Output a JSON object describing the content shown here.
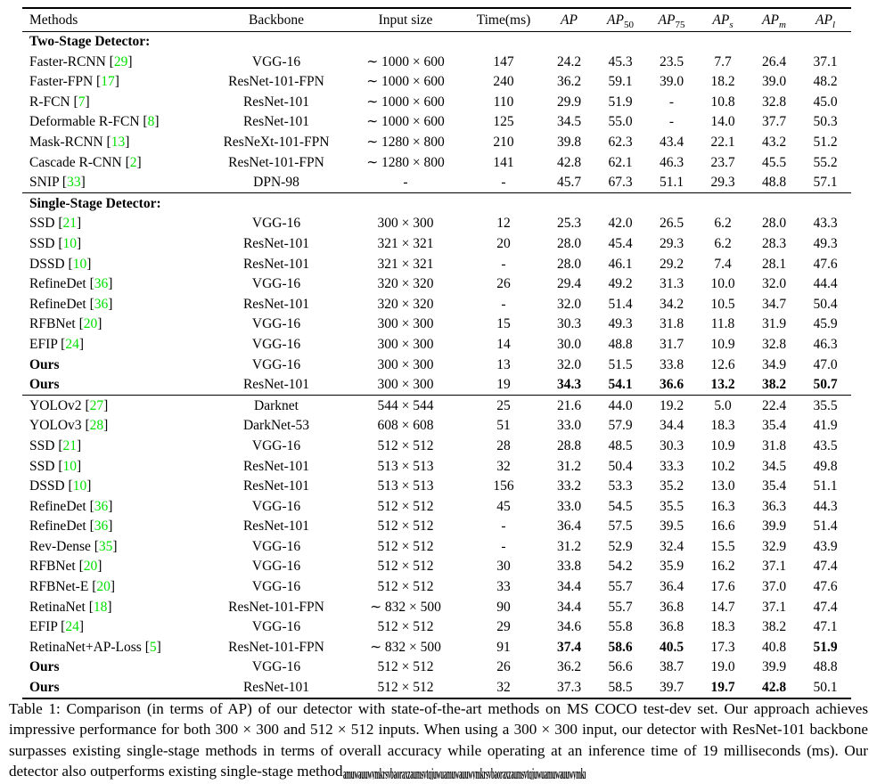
{
  "colors": {
    "citation_green": "#00e000",
    "text": "#000000",
    "background": "#ffffff"
  },
  "table": {
    "columns": [
      {
        "label": "Methods",
        "align": "left"
      },
      {
        "label": "Backbone"
      },
      {
        "label": "Input size"
      },
      {
        "label": "Time(ms)"
      },
      {
        "label": "AP",
        "sub": ""
      },
      {
        "label": "AP",
        "sub": "50"
      },
      {
        "label": "AP",
        "sub": "75"
      },
      {
        "label": "AP",
        "sub": "s"
      },
      {
        "label": "AP",
        "sub": "m"
      },
      {
        "label": "AP",
        "sub": "l"
      }
    ],
    "blocks": [
      {
        "section": "Two-Stage Detector:",
        "rows": [
          {
            "method": "Faster-RCNN",
            "cite": "29",
            "backbone": "VGG-16",
            "input": "∼ 1000 × 600",
            "time": "147",
            "values": [
              "24.2",
              "45.3",
              "23.5",
              "7.7",
              "26.4",
              "37.1"
            ],
            "bold": [],
            "bold_method": false
          },
          {
            "method": "Faster-FPN",
            "cite": "17",
            "backbone": "ResNet-101-FPN",
            "input": "∼ 1000 × 600",
            "time": "240",
            "values": [
              "36.2",
              "59.1",
              "39.0",
              "18.2",
              "39.0",
              "48.2"
            ],
            "bold": [],
            "bold_method": false
          },
          {
            "method": "R-FCN",
            "cite": "7",
            "backbone": "ResNet-101",
            "input": "∼ 1000 × 600",
            "time": "110",
            "values": [
              "29.9",
              "51.9",
              "-",
              "10.8",
              "32.8",
              "45.0"
            ],
            "bold": [],
            "bold_method": false
          },
          {
            "method": "Deformable R-FCN",
            "cite": "8",
            "backbone": "ResNet-101",
            "input": "∼ 1000 × 600",
            "time": "125",
            "values": [
              "34.5",
              "55.0",
              "-",
              "14.0",
              "37.7",
              "50.3"
            ],
            "bold": [],
            "bold_method": false
          },
          {
            "method": "Mask-RCNN",
            "cite": "13",
            "backbone": "ResNeXt-101-FPN",
            "input": "∼ 1280 × 800",
            "time": "210",
            "values": [
              "39.8",
              "62.3",
              "43.4",
              "22.1",
              "43.2",
              "51.2"
            ],
            "bold": [],
            "bold_method": false
          },
          {
            "method": "Cascade R-CNN",
            "cite": "2",
            "backbone": "ResNet-101-FPN",
            "input": "∼ 1280 × 800",
            "time": "141",
            "values": [
              "42.8",
              "62.1",
              "46.3",
              "23.7",
              "45.5",
              "55.2"
            ],
            "bold": [],
            "bold_method": false
          },
          {
            "method": "SNIP",
            "cite": "33",
            "backbone": "DPN-98",
            "input": "-",
            "time": "-",
            "values": [
              "45.7",
              "67.3",
              "51.1",
              "29.3",
              "48.8",
              "57.1"
            ],
            "bold": [],
            "bold_method": false
          }
        ]
      },
      {
        "section": "Single-Stage Detector:",
        "rows": [
          {
            "method": "SSD",
            "cite": "21",
            "backbone": "VGG-16",
            "input": "300 × 300",
            "time": "12",
            "values": [
              "25.3",
              "42.0",
              "26.5",
              "6.2",
              "28.0",
              "43.3"
            ],
            "bold": [],
            "bold_method": false
          },
          {
            "method": "SSD",
            "cite": "10",
            "backbone": "ResNet-101",
            "input": "321 × 321",
            "time": "20",
            "values": [
              "28.0",
              "45.4",
              "29.3",
              "6.2",
              "28.3",
              "49.3"
            ],
            "bold": [],
            "bold_method": false
          },
          {
            "method": "DSSD",
            "cite": "10",
            "backbone": "ResNet-101",
            "input": "321 × 321",
            "time": "-",
            "values": [
              "28.0",
              "46.1",
              "29.2",
              "7.4",
              "28.1",
              "47.6"
            ],
            "bold": [],
            "bold_method": false
          },
          {
            "method": "RefineDet",
            "cite": "36",
            "backbone": "VGG-16",
            "input": "320 × 320",
            "time": "26",
            "values": [
              "29.4",
              "49.2",
              "31.3",
              "10.0",
              "32.0",
              "44.4"
            ],
            "bold": [],
            "bold_method": false
          },
          {
            "method": "RefineDet",
            "cite": "36",
            "backbone": "ResNet-101",
            "input": "320 × 320",
            "time": "-",
            "values": [
              "32.0",
              "51.4",
              "34.2",
              "10.5",
              "34.7",
              "50.4"
            ],
            "bold": [],
            "bold_method": false
          },
          {
            "method": "RFBNet",
            "cite": "20",
            "backbone": "VGG-16",
            "input": "300 × 300",
            "time": "15",
            "values": [
              "30.3",
              "49.3",
              "31.8",
              "11.8",
              "31.9",
              "45.9"
            ],
            "bold": [],
            "bold_method": false
          },
          {
            "method": "EFIP",
            "cite": "24",
            "backbone": "VGG-16",
            "input": "300 × 300",
            "time": "14",
            "values": [
              "30.0",
              "48.8",
              "31.7",
              "10.9",
              "32.8",
              "46.3"
            ],
            "bold": [],
            "bold_method": false
          },
          {
            "method": "Ours",
            "cite": null,
            "backbone": "VGG-16",
            "input": "300 × 300",
            "time": "13",
            "values": [
              "32.0",
              "51.5",
              "33.8",
              "12.6",
              "34.9",
              "47.0"
            ],
            "bold": [],
            "bold_method": true
          },
          {
            "method": "Ours",
            "cite": null,
            "backbone": "ResNet-101",
            "input": "300 × 300",
            "time": "19",
            "values": [
              "34.3",
              "54.1",
              "36.6",
              "13.2",
              "38.2",
              "50.7"
            ],
            "bold": [
              0,
              1,
              2,
              3,
              4,
              5
            ],
            "bold_method": true
          }
        ]
      },
      {
        "section": null,
        "rows": [
          {
            "method": "YOLOv2",
            "cite": "27",
            "backbone": "Darknet",
            "input": "544 × 544",
            "time": "25",
            "values": [
              "21.6",
              "44.0",
              "19.2",
              "5.0",
              "22.4",
              "35.5"
            ],
            "bold": [],
            "bold_method": false
          },
          {
            "method": "YOLOv3",
            "cite": "28",
            "backbone": "DarkNet-53",
            "input": "608 × 608",
            "time": "51",
            "values": [
              "33.0",
              "57.9",
              "34.4",
              "18.3",
              "35.4",
              "41.9"
            ],
            "bold": [],
            "bold_method": false
          },
          {
            "method": "SSD",
            "cite": "21",
            "backbone": "VGG-16",
            "input": "512 × 512",
            "time": "28",
            "values": [
              "28.8",
              "48.5",
              "30.3",
              "10.9",
              "31.8",
              "43.5"
            ],
            "bold": [],
            "bold_method": false
          },
          {
            "method": "SSD",
            "cite": "10",
            "backbone": "ResNet-101",
            "input": "513 × 513",
            "time": "32",
            "values": [
              "31.2",
              "50.4",
              "33.3",
              "10.2",
              "34.5",
              "49.8"
            ],
            "bold": [],
            "bold_method": false
          },
          {
            "method": "DSSD",
            "cite": "10",
            "backbone": "ResNet-101",
            "input": "513 × 513",
            "time": "156",
            "values": [
              "33.2",
              "53.3",
              "35.2",
              "13.0",
              "35.4",
              "51.1"
            ],
            "bold": [],
            "bold_method": false
          },
          {
            "method": "RefineDet",
            "cite": "36",
            "backbone": "VGG-16",
            "input": "512 × 512",
            "time": "45",
            "values": [
              "33.0",
              "54.5",
              "35.5",
              "16.3",
              "36.3",
              "44.3"
            ],
            "bold": [],
            "bold_method": false
          },
          {
            "method": "RefineDet",
            "cite": "36",
            "backbone": "ResNet-101",
            "input": "512 × 512",
            "time": "-",
            "values": [
              "36.4",
              "57.5",
              "39.5",
              "16.6",
              "39.9",
              "51.4"
            ],
            "bold": [],
            "bold_method": false
          },
          {
            "method": "Rev-Dense",
            "cite": "35",
            "backbone": "VGG-16",
            "input": "512 × 512",
            "time": "-",
            "values": [
              "31.2",
              "52.9",
              "32.4",
              "15.5",
              "32.9",
              "43.9"
            ],
            "bold": [],
            "bold_method": false
          },
          {
            "method": "RFBNet",
            "cite": "20",
            "backbone": "VGG-16",
            "input": "512 × 512",
            "time": "30",
            "values": [
              "33.8",
              "54.2",
              "35.9",
              "16.2",
              "37.1",
              "47.4"
            ],
            "bold": [],
            "bold_method": false
          },
          {
            "method": "RFBNet-E",
            "cite": "20",
            "backbone": "VGG-16",
            "input": "512 × 512",
            "time": "33",
            "values": [
              "34.4",
              "55.7",
              "36.4",
              "17.6",
              "37.0",
              "47.6"
            ],
            "bold": [],
            "bold_method": false
          },
          {
            "method": "RetinaNet",
            "cite": "18",
            "backbone": "ResNet-101-FPN",
            "input": "∼ 832 × 500",
            "time": "90",
            "values": [
              "34.4",
              "55.7",
              "36.8",
              "14.7",
              "37.1",
              "47.4"
            ],
            "bold": [],
            "bold_method": false
          },
          {
            "method": "EFIP",
            "cite": "24",
            "backbone": "VGG-16",
            "input": "512 × 512",
            "time": "29",
            "values": [
              "34.6",
              "55.8",
              "36.8",
              "18.3",
              "38.2",
              "47.1"
            ],
            "bold": [],
            "bold_method": false
          },
          {
            "method": "RetinaNet+AP-Loss",
            "cite": "5",
            "backbone": "ResNet-101-FPN",
            "input": "∼ 832 × 500",
            "time": "91",
            "values": [
              "37.4",
              "58.6",
              "40.5",
              "17.3",
              "40.8",
              "51.9"
            ],
            "bold": [
              0,
              1,
              2,
              5
            ],
            "bold_method": false
          },
          {
            "method": "Ours",
            "cite": null,
            "backbone": "VGG-16",
            "input": "512 × 512",
            "time": "26",
            "values": [
              "36.2",
              "56.6",
              "38.7",
              "19.0",
              "39.9",
              "48.8"
            ],
            "bold": [],
            "bold_method": true
          },
          {
            "method": "Ours",
            "cite": null,
            "backbone": "ResNet-101",
            "input": "512 × 512",
            "time": "32",
            "values": [
              "37.3",
              "58.5",
              "39.7",
              "19.7",
              "42.8",
              "50.1"
            ],
            "bold": [
              3,
              4
            ],
            "bold_method": true
          }
        ]
      }
    ]
  },
  "caption": {
    "text": "Table 1: Comparison (in terms of AP) of our detector with state-of-the-art methods on MS COCO test-dev set. Our approach achieves impressive performance for both 300 × 300 and 512 × 512 inputs. When using a 300 × 300 input, our detector with ResNet-101 backbone surpasses existing single-stage methods in terms of overall accuracy while operating at an inference time of 19 milliseconds (ms). Our detector also outperforms existing single-stage method",
    "garbled": "amuwauuwymkrsvbaoraxzaumsvtqjuwuamuwauuwymkrsvbaoraxzaumsvtqjuwuamuwauuwymkrsvbun"
  }
}
